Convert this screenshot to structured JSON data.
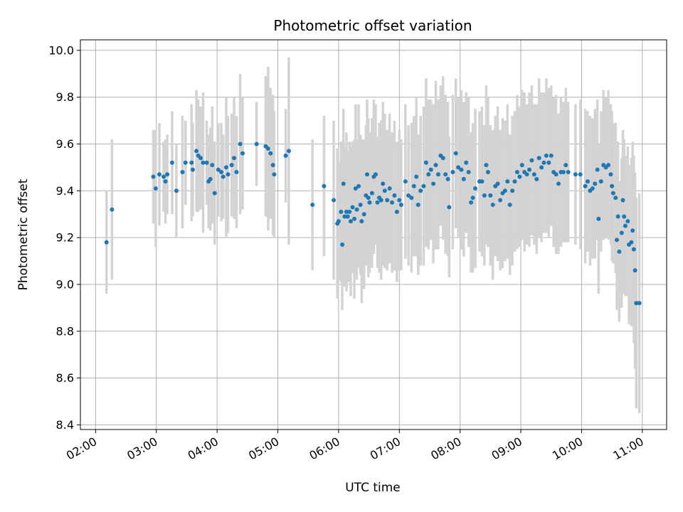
{
  "chart_data": {
    "type": "scatter",
    "title": "Photometric offset variation",
    "xlabel": "UTC time",
    "ylabel": "Photometric offset",
    "x_unit": "hours UTC",
    "xlim": [
      1.75,
      11.4
    ],
    "ylim": [
      8.38,
      10.045
    ],
    "x_ticks": [
      2,
      3,
      4,
      5,
      6,
      7,
      8,
      9,
      10,
      11
    ],
    "x_tick_labels": [
      "02:00",
      "03:00",
      "04:00",
      "05:00",
      "06:00",
      "07:00",
      "08:00",
      "09:00",
      "10:00",
      "11:00"
    ],
    "y_ticks": [
      8.4,
      8.6,
      8.8,
      9.0,
      9.2,
      9.4,
      9.6,
      9.8,
      10.0
    ],
    "y_tick_labels": [
      "8.4",
      "8.6",
      "8.8",
      "9.0",
      "9.2",
      "9.4",
      "9.6",
      "9.8",
      "10.0"
    ],
    "grid": true,
    "point_color": "#1f77b4",
    "errorbar_color": "#d3d3d3",
    "points": [
      [
        2.18,
        9.18,
        0.22
      ],
      [
        2.27,
        9.32,
        0.3
      ],
      [
        2.95,
        9.46,
        0.2
      ],
      [
        2.99,
        9.41,
        0.25
      ],
      [
        3.05,
        9.47,
        0.22
      ],
      [
        3.12,
        9.46,
        0.15
      ],
      [
        3.15,
        9.44,
        0.18
      ],
      [
        3.18,
        9.47,
        0.17
      ],
      [
        3.26,
        9.52,
        0.22
      ],
      [
        3.33,
        9.4,
        0.2
      ],
      [
        3.43,
        9.48,
        0.24
      ],
      [
        3.48,
        9.52,
        0.18
      ],
      [
        3.58,
        9.52,
        0.25
      ],
      [
        3.6,
        9.49,
        0.2
      ],
      [
        3.66,
        9.57,
        0.26
      ],
      [
        3.69,
        9.55,
        0.24
      ],
      [
        3.73,
        9.54,
        0.22
      ],
      [
        3.77,
        9.52,
        0.3
      ],
      [
        3.83,
        9.52,
        0.18
      ],
      [
        3.86,
        9.44,
        0.2
      ],
      [
        3.89,
        9.45,
        0.22
      ],
      [
        3.92,
        9.51,
        0.25
      ],
      [
        3.96,
        9.39,
        0.22
      ],
      [
        4.02,
        9.49,
        0.2
      ],
      [
        4.07,
        9.48,
        0.21
      ],
      [
        4.1,
        9.46,
        0.18
      ],
      [
        4.15,
        9.5,
        0.3
      ],
      [
        4.18,
        9.47,
        0.25
      ],
      [
        4.24,
        9.51,
        0.22
      ],
      [
        4.28,
        9.54,
        0.26
      ],
      [
        4.32,
        9.48,
        0.24
      ],
      [
        4.38,
        9.6,
        0.3
      ],
      [
        4.42,
        9.56,
        0.24
      ],
      [
        4.65,
        9.6,
        0.18
      ],
      [
        4.8,
        9.59,
        0.3
      ],
      [
        4.84,
        9.58,
        0.35
      ],
      [
        4.88,
        9.56,
        0.28
      ],
      [
        4.92,
        9.51,
        0.3
      ],
      [
        4.94,
        9.47,
        0.27
      ],
      [
        5.13,
        9.55,
        0.2
      ],
      [
        5.18,
        9.57,
        0.4
      ],
      [
        5.57,
        9.34,
        0.28
      ],
      [
        5.76,
        9.42,
        0.3
      ],
      [
        5.92,
        9.36,
        0.34
      ],
      [
        5.98,
        9.26,
        0.32
      ],
      [
        6.0,
        9.27,
        0.25
      ],
      [
        6.04,
        9.31,
        0.3
      ],
      [
        6.06,
        9.17,
        0.28
      ],
      [
        6.08,
        9.43,
        0.32
      ],
      [
        6.1,
        9.29,
        0.3
      ],
      [
        6.13,
        9.31,
        0.34
      ],
      [
        6.15,
        9.29,
        0.28
      ],
      [
        6.18,
        9.31,
        0.3
      ],
      [
        6.2,
        9.27,
        0.32
      ],
      [
        6.23,
        9.33,
        0.28
      ],
      [
        6.26,
        9.28,
        0.34
      ],
      [
        6.28,
        9.41,
        0.36
      ],
      [
        6.3,
        9.32,
        0.3
      ],
      [
        6.33,
        9.42,
        0.35
      ],
      [
        6.36,
        9.34,
        0.3
      ],
      [
        6.38,
        9.27,
        0.35
      ],
      [
        6.42,
        9.3,
        0.32
      ],
      [
        6.45,
        9.38,
        0.3
      ],
      [
        6.47,
        9.47,
        0.32
      ],
      [
        6.49,
        9.37,
        0.34
      ],
      [
        6.51,
        9.35,
        0.3
      ],
      [
        6.55,
        9.39,
        0.32
      ],
      [
        6.58,
        9.46,
        0.33
      ],
      [
        6.61,
        9.47,
        0.3
      ],
      [
        6.64,
        9.35,
        0.28
      ],
      [
        6.67,
        9.37,
        0.32
      ],
      [
        6.7,
        9.36,
        0.34
      ],
      [
        6.73,
        9.43,
        0.35
      ],
      [
        6.76,
        9.4,
        0.33
      ],
      [
        6.8,
        9.36,
        0.3
      ],
      [
        6.84,
        9.41,
        0.32
      ],
      [
        6.88,
        9.35,
        0.3
      ],
      [
        6.92,
        9.38,
        0.32
      ],
      [
        6.96,
        9.31,
        0.3
      ],
      [
        7.0,
        9.36,
        0.3
      ],
      [
        7.03,
        9.34,
        0.28
      ],
      [
        7.1,
        9.44,
        0.33
      ],
      [
        7.15,
        9.38,
        0.3
      ],
      [
        7.2,
        9.37,
        0.32
      ],
      [
        7.24,
        9.42,
        0.3
      ],
      [
        7.28,
        9.46,
        0.34
      ],
      [
        7.31,
        9.34,
        0.3
      ],
      [
        7.35,
        9.4,
        0.32
      ],
      [
        7.4,
        9.42,
        0.34
      ],
      [
        7.44,
        9.52,
        0.36
      ],
      [
        7.48,
        9.47,
        0.32
      ],
      [
        7.52,
        9.49,
        0.3
      ],
      [
        7.56,
        9.43,
        0.34
      ],
      [
        7.6,
        9.51,
        0.36
      ],
      [
        7.64,
        9.47,
        0.32
      ],
      [
        7.68,
        9.55,
        0.3
      ],
      [
        7.72,
        9.54,
        0.35
      ],
      [
        7.76,
        9.47,
        0.34
      ],
      [
        7.8,
        9.45,
        0.33
      ],
      [
        7.82,
        9.33,
        0.3
      ],
      [
        7.88,
        9.48,
        0.33
      ],
      [
        7.93,
        9.56,
        0.32
      ],
      [
        7.97,
        9.5,
        0.3
      ],
      [
        8.02,
        9.49,
        0.34
      ],
      [
        8.06,
        9.45,
        0.33
      ],
      [
        8.1,
        9.52,
        0.3
      ],
      [
        8.14,
        9.48,
        0.32
      ],
      [
        8.18,
        9.35,
        0.3
      ],
      [
        8.21,
        9.37,
        0.32
      ],
      [
        8.25,
        9.41,
        0.34
      ],
      [
        8.32,
        9.44,
        0.3
      ],
      [
        8.36,
        9.44,
        0.32
      ],
      [
        8.4,
        9.38,
        0.3
      ],
      [
        8.43,
        9.51,
        0.34
      ],
      [
        8.46,
        9.48,
        0.32
      ],
      [
        8.5,
        9.38,
        0.3
      ],
      [
        8.54,
        9.34,
        0.32
      ],
      [
        8.58,
        9.42,
        0.3
      ],
      [
        8.62,
        9.43,
        0.33
      ],
      [
        8.66,
        9.36,
        0.3
      ],
      [
        8.7,
        9.39,
        0.32
      ],
      [
        8.74,
        9.4,
        0.3
      ],
      [
        8.78,
        9.44,
        0.33
      ],
      [
        8.82,
        9.34,
        0.3
      ],
      [
        8.86,
        9.4,
        0.32
      ],
      [
        8.9,
        9.44,
        0.3
      ],
      [
        8.94,
        9.48,
        0.33
      ],
      [
        8.98,
        9.46,
        0.3
      ],
      [
        9.02,
        9.51,
        0.32
      ],
      [
        9.06,
        9.48,
        0.34
      ],
      [
        9.1,
        9.47,
        0.3
      ],
      [
        9.14,
        9.49,
        0.33
      ],
      [
        9.18,
        9.53,
        0.32
      ],
      [
        9.22,
        9.47,
        0.3
      ],
      [
        9.26,
        9.45,
        0.32
      ],
      [
        9.3,
        9.54,
        0.34
      ],
      [
        9.34,
        9.5,
        0.32
      ],
      [
        9.38,
        9.52,
        0.3
      ],
      [
        9.42,
        9.55,
        0.33
      ],
      [
        9.46,
        9.52,
        0.32
      ],
      [
        9.5,
        9.55,
        0.3
      ],
      [
        9.54,
        9.48,
        0.32
      ],
      [
        9.58,
        9.47,
        0.34
      ],
      [
        9.62,
        9.43,
        0.3
      ],
      [
        9.66,
        9.48,
        0.32
      ],
      [
        9.7,
        9.48,
        0.3
      ],
      [
        9.74,
        9.51,
        0.33
      ],
      [
        9.78,
        9.48,
        0.3
      ],
      [
        9.9,
        9.47,
        0.3
      ],
      [
        9.98,
        9.47,
        0.32
      ],
      [
        10.06,
        9.42,
        0.33
      ],
      [
        10.1,
        9.44,
        0.3
      ],
      [
        10.14,
        9.4,
        0.32
      ],
      [
        10.18,
        9.41,
        0.3
      ],
      [
        10.22,
        9.43,
        0.32
      ],
      [
        10.26,
        9.49,
        0.3
      ],
      [
        10.28,
        9.28,
        0.32
      ],
      [
        10.32,
        9.44,
        0.3
      ],
      [
        10.36,
        9.51,
        0.32
      ],
      [
        10.4,
        9.5,
        0.3
      ],
      [
        10.44,
        9.51,
        0.32
      ],
      [
        10.48,
        9.47,
        0.3
      ],
      [
        10.5,
        9.42,
        0.32
      ],
      [
        10.52,
        9.39,
        0.3
      ],
      [
        10.56,
        9.37,
        0.32
      ],
      [
        10.58,
        9.19,
        0.3
      ],
      [
        10.6,
        9.29,
        0.32
      ],
      [
        10.62,
        9.14,
        0.3
      ],
      [
        10.66,
        9.22,
        0.32
      ],
      [
        10.68,
        9.36,
        0.3
      ],
      [
        10.7,
        9.29,
        0.33
      ],
      [
        10.72,
        9.25,
        0.3
      ],
      [
        10.76,
        9.27,
        0.32
      ],
      [
        10.78,
        9.17,
        0.34
      ],
      [
        10.82,
        9.18,
        0.36
      ],
      [
        10.84,
        9.23,
        0.38
      ],
      [
        10.86,
        9.15,
        0.4
      ],
      [
        10.88,
        9.06,
        0.42
      ],
      [
        10.9,
        8.92,
        0.45
      ],
      [
        10.95,
        8.92,
        0.47
      ]
    ]
  }
}
